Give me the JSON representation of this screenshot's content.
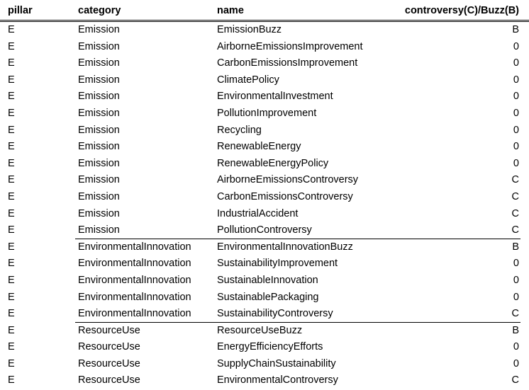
{
  "table": {
    "headers": {
      "pillar": "pillar",
      "category": "category",
      "name": "name",
      "flag": "controversy(C)/Buzz(B)"
    },
    "rows": [
      {
        "pillar": "E",
        "category": "Emission",
        "name": "EmissionBuzz",
        "flag": "B"
      },
      {
        "pillar": "E",
        "category": "Emission",
        "name": "AirborneEmissionsImprovement",
        "flag": "0"
      },
      {
        "pillar": "E",
        "category": "Emission",
        "name": "CarbonEmissionsImprovement",
        "flag": "0"
      },
      {
        "pillar": "E",
        "category": "Emission",
        "name": "ClimatePolicy",
        "flag": "0"
      },
      {
        "pillar": "E",
        "category": "Emission",
        "name": "EnvironmentalInvestment",
        "flag": "0"
      },
      {
        "pillar": "E",
        "category": "Emission",
        "name": "PollutionImprovement",
        "flag": "0"
      },
      {
        "pillar": "E",
        "category": "Emission",
        "name": "Recycling",
        "flag": "0"
      },
      {
        "pillar": "E",
        "category": "Emission",
        "name": "RenewableEnergy",
        "flag": "0"
      },
      {
        "pillar": "E",
        "category": "Emission",
        "name": "RenewableEnergyPolicy",
        "flag": "0"
      },
      {
        "pillar": "E",
        "category": "Emission",
        "name": "AirborneEmissionsControversy",
        "flag": "C"
      },
      {
        "pillar": "E",
        "category": "Emission",
        "name": "CarbonEmissionsControversy",
        "flag": "C"
      },
      {
        "pillar": "E",
        "category": "Emission",
        "name": "IndustrialAccident",
        "flag": "C"
      },
      {
        "pillar": "E",
        "category": "Emission",
        "name": "PollutionControversy",
        "flag": "C"
      },
      {
        "pillar": "E",
        "category": "EnvironmentalInnovation",
        "name": "EnvironmentalInnovationBuzz",
        "flag": "B"
      },
      {
        "pillar": "E",
        "category": "EnvironmentalInnovation",
        "name": "SustainabilityImprovement",
        "flag": "0"
      },
      {
        "pillar": "E",
        "category": "EnvironmentalInnovation",
        "name": "SustainableInnovation",
        "flag": "0"
      },
      {
        "pillar": "E",
        "category": "EnvironmentalInnovation",
        "name": "SustainablePackaging",
        "flag": "0"
      },
      {
        "pillar": "E",
        "category": "EnvironmentalInnovation",
        "name": "SustainabilityControversy",
        "flag": "C"
      },
      {
        "pillar": "E",
        "category": "ResourceUse",
        "name": "ResourceUseBuzz",
        "flag": "B"
      },
      {
        "pillar": "E",
        "category": "ResourceUse",
        "name": "EnergyEfficiencyEfforts",
        "flag": "0"
      },
      {
        "pillar": "E",
        "category": "ResourceUse",
        "name": "SupplyChainSustainability",
        "flag": "0"
      },
      {
        "pillar": "E",
        "category": "ResourceUse",
        "name": "EnvironmentalControversy",
        "flag": "C"
      }
    ]
  }
}
